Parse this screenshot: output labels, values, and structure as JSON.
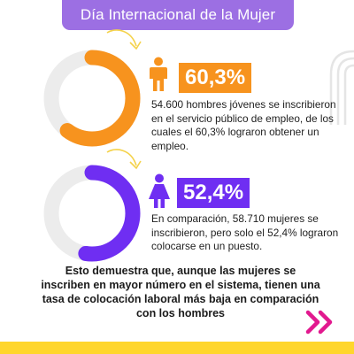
{
  "title": "Día Internacional de la Mujer",
  "colors": {
    "title_bar": "#9c6fe3",
    "men_accent": "#f7931e",
    "women_accent": "#6f2ef2",
    "ring_track": "#ececec",
    "arrow": "#f4d24a",
    "bottom_bar": "#ffd62c",
    "chevrons": "#e2198f"
  },
  "icons": {
    "men": "male-person-icon",
    "women": "female-person-icon",
    "next": "double-chevron-right-icon"
  },
  "chart_data": [
    {
      "type": "pie",
      "values": [
        60.3,
        39.7
      ],
      "colors": [
        "#f7931e",
        "#ececec"
      ],
      "label": "60,3%"
    },
    {
      "type": "pie",
      "values": [
        52.4,
        47.6
      ],
      "colors": [
        "#6f2ef2",
        "#ececec"
      ],
      "label": "52,4%"
    }
  ],
  "stats": [
    {
      "percent_label": "60,3%",
      "description": "54.600 hombres jóvenes se inscribieron en el servicio público de empleo, de los cuales el 60,3% lograron obtener un empleo."
    },
    {
      "percent_label": "52,4%",
      "description": "En comparación, 58.710 mujeres se inscribieron, pero solo el 52,4% lograron colocarse en un puesto."
    }
  ],
  "conclusion": "Esto demuestra que, aunque las mujeres se inscriben en mayor número en el sistema, tienen una tasa de colocación laboral más baja en comparación con los hombres"
}
